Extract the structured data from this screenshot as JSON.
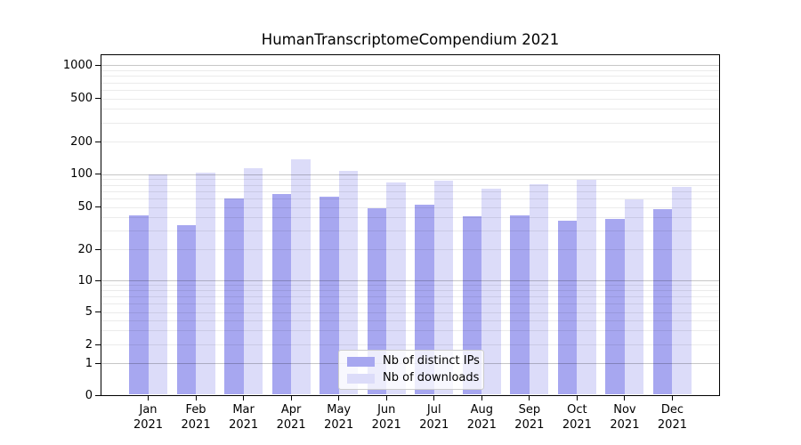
{
  "figure": {
    "title": "HumanTranscriptomeCompendium 2021",
    "background": "#ffffff"
  },
  "chart_data": {
    "type": "bar",
    "title": "HumanTranscriptomeCompendium 2021",
    "categories": [
      "Jan 2021",
      "Feb 2021",
      "Mar 2021",
      "Apr 2021",
      "May 2021",
      "Jun 2021",
      "Jul 2021",
      "Aug 2021",
      "Sep 2021",
      "Oct 2021",
      "Nov 2021",
      "Dec 2021"
    ],
    "series": [
      {
        "name": "Nb of distinct IPs",
        "color": "#a7a7f0",
        "values": [
          42,
          34,
          60,
          66,
          62,
          49,
          53,
          41,
          42,
          37,
          39,
          48
        ]
      },
      {
        "name": "Nb of downloads",
        "color": "#dcdcf9",
        "values": [
          100,
          103,
          113,
          136,
          108,
          84,
          88,
          73,
          81,
          89,
          59,
          76
        ]
      }
    ],
    "yscale": "symlog",
    "ylim": [
      0,
      1270
    ],
    "yticks": [
      1000,
      500,
      200,
      100,
      50,
      20,
      10,
      5,
      2,
      1,
      0
    ],
    "grid": true,
    "legend_position": "lower center",
    "bar_style": "grouped-pairs"
  },
  "colors": {
    "major_grid": "rgba(0,0,0,0.22)",
    "minor_grid": "rgba(0,0,0,0.08)",
    "spine": "#000000",
    "text": "#000000"
  }
}
